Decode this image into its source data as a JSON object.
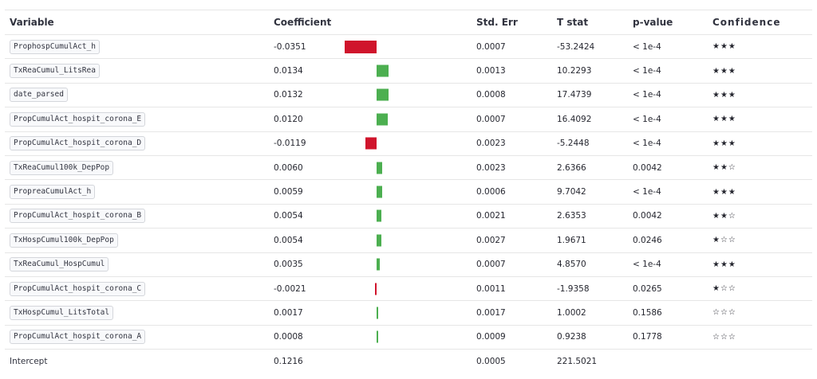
{
  "headers": {
    "variable": "Variable",
    "coefficient": "Coefficient",
    "std_err": "Std. Err",
    "t_stat": "T stat",
    "p_value": "p-value",
    "confidence": "Confidence"
  },
  "colors": {
    "positive": "#4caf50",
    "negative": "#d0142c"
  },
  "rows": [
    {
      "variable": "ProphospCumulAct_h",
      "coefficient": "-0.0351",
      "coef_value": -0.0351,
      "std_err": "0.0007",
      "t_stat": "-53.2424",
      "p_value": "< 1e-4",
      "confidence": "★★★"
    },
    {
      "variable": "TxReaCumul_LitsRea",
      "coefficient": "0.0134",
      "coef_value": 0.0134,
      "std_err": "0.0013",
      "t_stat": "10.2293",
      "p_value": "< 1e-4",
      "confidence": "★★★"
    },
    {
      "variable": "date_parsed",
      "coefficient": "0.0132",
      "coef_value": 0.0132,
      "std_err": "0.0008",
      "t_stat": "17.4739",
      "p_value": "< 1e-4",
      "confidence": "★★★"
    },
    {
      "variable": "PropCumulAct_hospit_corona_E",
      "coefficient": "0.0120",
      "coef_value": 0.012,
      "std_err": "0.0007",
      "t_stat": "16.4092",
      "p_value": "< 1e-4",
      "confidence": "★★★"
    },
    {
      "variable": "PropCumulAct_hospit_corona_D",
      "coefficient": "-0.0119",
      "coef_value": -0.0119,
      "std_err": "0.0023",
      "t_stat": "-5.2448",
      "p_value": "< 1e-4",
      "confidence": "★★★"
    },
    {
      "variable": "TxReaCumul100k_DepPop",
      "coefficient": "0.0060",
      "coef_value": 0.006,
      "std_err": "0.0023",
      "t_stat": "2.6366",
      "p_value": "0.0042",
      "confidence": "★★☆"
    },
    {
      "variable": "PropreaCumulAct_h",
      "coefficient": "0.0059",
      "coef_value": 0.0059,
      "std_err": "0.0006",
      "t_stat": "9.7042",
      "p_value": "< 1e-4",
      "confidence": "★★★"
    },
    {
      "variable": "PropCumulAct_hospit_corona_B",
      "coefficient": "0.0054",
      "coef_value": 0.0054,
      "std_err": "0.0021",
      "t_stat": "2.6353",
      "p_value": "0.0042",
      "confidence": "★★☆"
    },
    {
      "variable": "TxHospCumul100k_DepPop",
      "coefficient": "0.0054",
      "coef_value": 0.0054,
      "std_err": "0.0027",
      "t_stat": "1.9671",
      "p_value": "0.0246",
      "confidence": "★☆☆"
    },
    {
      "variable": "TxReaCumul_HospCumul",
      "coefficient": "0.0035",
      "coef_value": 0.0035,
      "std_err": "0.0007",
      "t_stat": "4.8570",
      "p_value": "< 1e-4",
      "confidence": "★★★"
    },
    {
      "variable": "PropCumulAct_hospit_corona_C",
      "coefficient": "-0.0021",
      "coef_value": -0.0021,
      "std_err": "0.0011",
      "t_stat": "-1.9358",
      "p_value": "0.0265",
      "confidence": "★☆☆"
    },
    {
      "variable": "TxHospCumul_LitsTotal",
      "coefficient": "0.0017",
      "coef_value": 0.0017,
      "std_err": "0.0017",
      "t_stat": "1.0002",
      "p_value": "0.1586",
      "confidence": "☆☆☆"
    },
    {
      "variable": "PropCumulAct_hospit_corona_A",
      "coefficient": "0.0008",
      "coef_value": 0.0008,
      "std_err": "0.0009",
      "t_stat": "0.9238",
      "p_value": "0.1778",
      "confidence": "☆☆☆"
    }
  ],
  "intercept": {
    "label": "Intercept",
    "coefficient": "0.1216",
    "std_err": "0.0005",
    "t_stat": "221.5021"
  }
}
